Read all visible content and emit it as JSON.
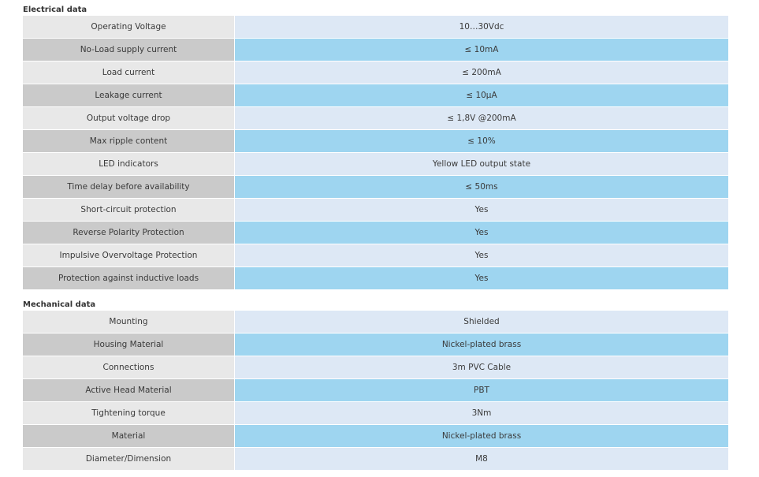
{
  "electrical": {
    "title": "Electrical data",
    "rows": [
      {
        "label": "Operating Voltage",
        "value": "10…30Vdc"
      },
      {
        "label": "No-Load supply current",
        "value": "≤ 10mA"
      },
      {
        "label": "Load current",
        "value": "≤ 200mA"
      },
      {
        "label": "Leakage current",
        "value": "≤ 10µA"
      },
      {
        "label": "Output voltage drop",
        "value": "≤ 1,8V @200mA"
      },
      {
        "label": "Max ripple content",
        "value": "≤ 10%"
      },
      {
        "label": "LED indicators",
        "value": "Yellow LED output state"
      },
      {
        "label": "Time delay before availability",
        "value": "≤ 50ms"
      },
      {
        "label": "Short-circuit protection",
        "value": "Yes"
      },
      {
        "label": "Reverse Polarity Protection",
        "value": "Yes"
      },
      {
        "label": "Impulsive Overvoltage Protection",
        "value": "Yes"
      },
      {
        "label": "Protection against inductive loads",
        "value": "Yes"
      }
    ]
  },
  "mechanical": {
    "title": "Mechanical data",
    "rows": [
      {
        "label": "Mounting",
        "value": "Shielded"
      },
      {
        "label": "Housing Material",
        "value": "Nickel-plated brass"
      },
      {
        "label": "Connections",
        "value": "3m PVC Cable"
      },
      {
        "label": "Active Head Material",
        "value": "PBT"
      },
      {
        "label": "Tightening torque",
        "value": "3Nm"
      },
      {
        "label": "Material",
        "value": "Nickel-plated brass"
      },
      {
        "label": "Diameter/Dimension",
        "value": "M8"
      }
    ]
  },
  "colors": {
    "label_light": "#e8e8e8",
    "label_dark": "#cacaca",
    "value_light": "#dde8f5",
    "value_dark": "#9ed5f0"
  }
}
